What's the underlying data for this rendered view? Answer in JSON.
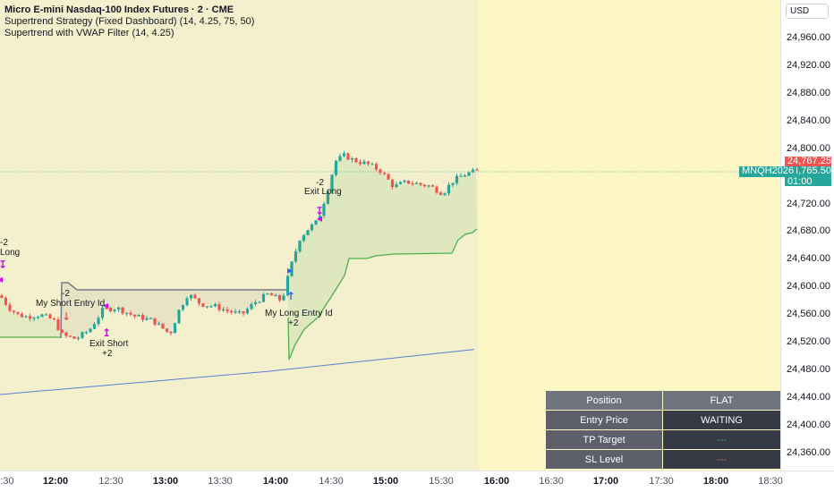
{
  "legend": {
    "symbol_title": "Micro E-mini Nasdaq-100 Index Futures · 2 · CME",
    "indicator_1": "Supertrend Strategy (Fixed Dashboard) (14, 4.25, 75, 50)",
    "indicator_2": "Supertrend with VWAP Filter (14, 4.25)"
  },
  "currency_button": "USD",
  "price_axis_ticks": [
    "24,960.00",
    "24,920.00",
    "24,880.00",
    "24,840.00",
    "24,800.00",
    "24,720.00",
    "24,680.00",
    "24,640.00",
    "24,600.00",
    "24,560.00",
    "24,520.00",
    "24,480.00",
    "24,440.00",
    "24,400.00",
    "24,360.00"
  ],
  "price_tags": {
    "last_price": "24,767.25",
    "current_price": "24,765.50",
    "countdown": "01:00",
    "symbol": "MNQH2026"
  },
  "time_axis": [
    {
      "label": ":30",
      "bold": false
    },
    {
      "label": "12:00",
      "bold": true
    },
    {
      "label": "12:30",
      "bold": false
    },
    {
      "label": "13:00",
      "bold": true
    },
    {
      "label": "13:30",
      "bold": false
    },
    {
      "label": "14:00",
      "bold": true
    },
    {
      "label": "14:30",
      "bold": false
    },
    {
      "label": "15:00",
      "bold": true
    },
    {
      "label": "15:30",
      "bold": false
    },
    {
      "label": "16:00",
      "bold": true
    },
    {
      "label": "16:30",
      "bold": false
    },
    {
      "label": "17:00",
      "bold": true
    },
    {
      "label": "17:30",
      "bold": false
    },
    {
      "label": "18:00",
      "bold": true
    },
    {
      "label": "18:30",
      "bold": false
    }
  ],
  "annotations": {
    "left_qty": "-2",
    "left_label": "Long",
    "short_qty": "-2",
    "short_entry": "My Short Entry Id",
    "exit_short": "Exit Short",
    "exit_short_qty": "+2",
    "long_entry": "My Long Entry Id",
    "long_entry_qty": "+2",
    "exit_long_qty": "-2",
    "exit_long": "Exit Long"
  },
  "dashboard": {
    "rows": [
      {
        "label": "Position",
        "value": "FLAT"
      },
      {
        "label": "Entry Price",
        "value": "WAITING"
      },
      {
        "label": "TP Target",
        "value": "---"
      },
      {
        "label": "SL Level",
        "value": "---"
      }
    ],
    "tp_color": "#26a69a",
    "sl_color": "#f05350"
  },
  "colors": {
    "up_candle": "#26a69a",
    "down_candle": "#f05350",
    "supertrend_up": "#4caf50",
    "supertrend_down": "#787b86",
    "vwap": "#5b7fd6",
    "signal_marker": "#d500f9"
  }
}
